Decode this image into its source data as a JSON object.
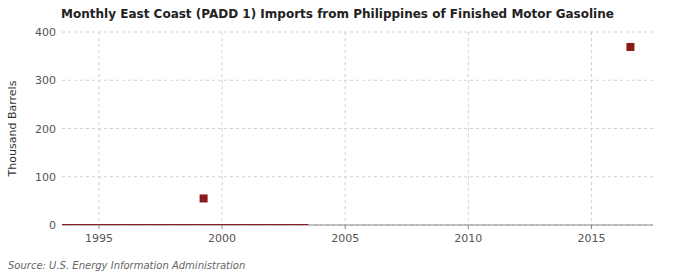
{
  "chart_data": {
    "type": "line",
    "title": "Monthly East Coast (PADD 1) Imports from Philippines of Finished Motor Gasoline",
    "ylabel": "Thousand Barrels",
    "source": "Source: U.S. Energy Information Administration",
    "xlim": [
      1993.5,
      2017.5
    ],
    "xticks": [
      1995,
      2000,
      2005,
      2010,
      2015
    ],
    "ylim": [
      0,
      400
    ],
    "yticks": [
      0,
      100,
      200,
      300,
      400
    ],
    "grid": true,
    "series": [
      {
        "type": "line",
        "color": "#8b1a1a",
        "x": [
          1993.5,
          2003.5
        ],
        "values": [
          0,
          0
        ]
      },
      {
        "type": "scatter",
        "color": "#8b1a1a",
        "marker": "square",
        "x": [
          1999.25,
          2016.583
        ],
        "values": [
          55,
          369
        ]
      }
    ]
  }
}
